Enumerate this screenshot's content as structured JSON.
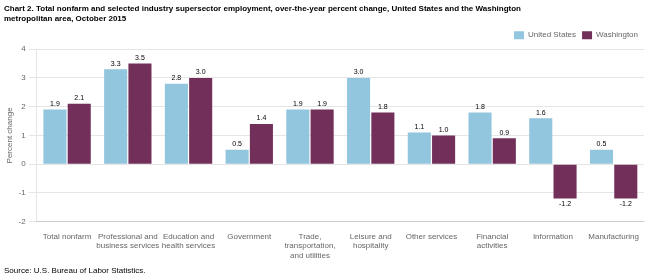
{
  "chart_data": {
    "type": "bar",
    "title": "Chart 2. Total nonfarm and selected industry supersector employment, over-the-year percent change, United States and the Washington\nmetropolitan area, October 2015",
    "ylabel": "Percent change",
    "source": "Source: U.S. Bureau of Labor Statistics.",
    "categories": [
      "Total nonfarm",
      "Professional and\nbusiness services",
      "Education and\nhealth services",
      "Government",
      "Trade,\ntransportation,\nand utilities",
      "Leisure and\nhospitality",
      "Other services",
      "Financial\nactivities",
      "Information",
      "Manufacturing"
    ],
    "series": [
      {
        "name": "United States",
        "color": "#92C5DE",
        "values": [
          1.9,
          3.3,
          2.8,
          0.5,
          1.9,
          3.0,
          1.1,
          1.8,
          1.6,
          0.5
        ],
        "value_labels": [
          "1.9",
          "3.3",
          "2.8",
          "0.5",
          "1.9",
          "3.0",
          "1.1",
          "1.8",
          "1.6",
          "0.5"
        ]
      },
      {
        "name": "Washington",
        "color": "#722F5A",
        "values": [
          2.1,
          3.5,
          3.0,
          1.4,
          1.9,
          1.8,
          1.0,
          0.9,
          -1.2,
          -1.2
        ],
        "value_labels": [
          "2.1",
          "3.5",
          "3.0",
          "1.4",
          "1.9",
          "1.8",
          "1.0",
          "0.9",
          "-1.2",
          "-1.2"
        ]
      }
    ],
    "ylim": [
      -2.0,
      4.0
    ],
    "yticks": [
      -2,
      -1,
      0,
      1,
      2,
      3,
      4
    ],
    "grid": true,
    "legend": "upper right",
    "data_labels": true
  }
}
